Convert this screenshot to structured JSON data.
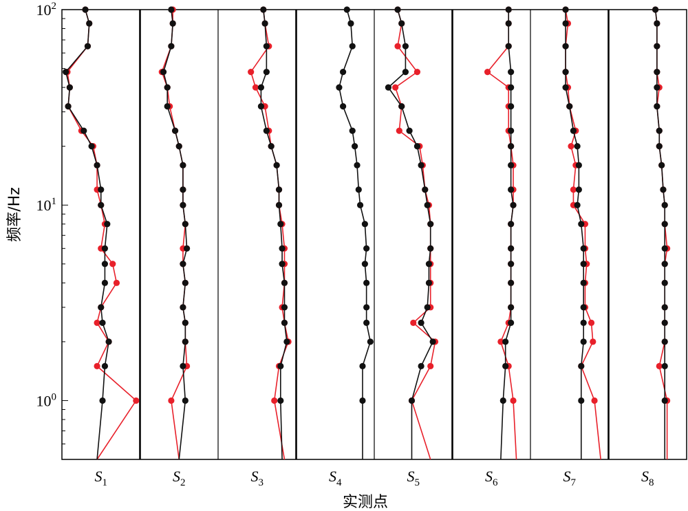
{
  "chart_data": {
    "type": "line",
    "xlabel": "实测点",
    "ylabel": "频率/Hz",
    "yscale": "log",
    "ylim": [
      0.5,
      100
    ],
    "yticks": [
      {
        "value": 1,
        "base": "10",
        "exp": "0"
      },
      {
        "value": 10,
        "base": "10",
        "exp": "1"
      },
      {
        "value": 100,
        "base": "10",
        "exp": "2"
      }
    ],
    "colors": {
      "black_series": "#111111",
      "red_series": "#e8202a"
    },
    "freqs": [
      100,
      85,
      65,
      48,
      40,
      32,
      24,
      20,
      16,
      12,
      10,
      8,
      6,
      5,
      4,
      3,
      2.5,
      2,
      1.5,
      1,
      0.5
    ],
    "panels": [
      {
        "label": "S",
        "sub": "1",
        "black": [
          0.3,
          0.35,
          0.33,
          0.05,
          0.1,
          0.08,
          0.28,
          0.38,
          0.45,
          0.5,
          0.5,
          0.58,
          0.55,
          0.55,
          0.55,
          0.5,
          0.52,
          0.6,
          0.55,
          0.52,
          0.45
        ],
        "red": [
          0.3,
          0.35,
          0.33,
          0.07,
          0.1,
          0.08,
          0.25,
          0.4,
          0.45,
          0.45,
          0.5,
          0.55,
          0.5,
          0.65,
          0.7,
          0.5,
          0.45,
          0.6,
          0.45,
          0.95,
          0.45
        ]
      },
      {
        "label": "S",
        "sub": "2",
        "black": [
          0.4,
          0.42,
          0.4,
          0.3,
          0.35,
          0.35,
          0.45,
          0.5,
          0.55,
          0.55,
          0.55,
          0.58,
          0.6,
          0.55,
          0.58,
          0.55,
          0.58,
          0.58,
          0.55,
          0.58,
          0.5
        ],
        "red": [
          0.42,
          0.42,
          0.4,
          0.28,
          0.35,
          0.38,
          0.45,
          0.5,
          0.55,
          0.55,
          0.55,
          0.58,
          0.55,
          0.55,
          0.58,
          0.55,
          0.58,
          0.58,
          0.6,
          0.4,
          0.5
        ]
      },
      {
        "label": "S",
        "sub": "3",
        "black": [
          0.58,
          0.6,
          0.62,
          0.62,
          0.55,
          0.55,
          0.62,
          0.68,
          0.75,
          0.78,
          0.78,
          0.8,
          0.82,
          0.82,
          0.85,
          0.85,
          0.85,
          0.88,
          0.8,
          0.8,
          0.82
        ],
        "red": [
          0.58,
          0.6,
          0.65,
          0.42,
          0.48,
          0.6,
          0.65,
          0.68,
          0.75,
          0.78,
          0.78,
          0.82,
          0.85,
          0.85,
          0.85,
          0.82,
          0.85,
          0.9,
          0.78,
          0.72,
          0.85
        ]
      },
      {
        "label": "S",
        "sub": "4",
        "black": [
          0.65,
          0.7,
          0.72,
          0.6,
          0.55,
          0.6,
          0.72,
          0.75,
          0.78,
          0.8,
          0.82,
          0.88,
          0.9,
          0.88,
          0.9,
          0.9,
          0.9,
          0.95,
          0.85,
          0.85,
          0.85
        ]
      },
      {
        "label": "S",
        "sub": "5",
        "black": [
          0.3,
          0.35,
          0.4,
          0.4,
          0.18,
          0.35,
          0.45,
          0.55,
          0.6,
          0.65,
          0.68,
          0.72,
          0.72,
          0.7,
          0.7,
          0.68,
          0.6,
          0.75,
          0.6,
          0.48,
          0.48
        ],
        "red": [
          0.3,
          0.35,
          0.3,
          0.55,
          0.27,
          0.35,
          0.32,
          0.58,
          0.62,
          0.65,
          0.7,
          0.72,
          0.72,
          0.72,
          0.72,
          0.72,
          0.5,
          0.78,
          0.72,
          0.48,
          0.72
        ]
      },
      {
        "label": "S",
        "sub": "6",
        "black": [
          0.72,
          0.72,
          0.72,
          0.75,
          0.75,
          0.75,
          0.75,
          0.75,
          0.75,
          0.75,
          0.78,
          0.75,
          0.75,
          0.75,
          0.75,
          0.75,
          0.75,
          0.68,
          0.68,
          0.65,
          0.62
        ],
        "red": [
          0.72,
          0.72,
          0.72,
          0.45,
          0.72,
          0.72,
          0.72,
          0.75,
          0.78,
          0.78,
          0.78,
          0.75,
          0.75,
          0.75,
          0.75,
          0.75,
          0.72,
          0.62,
          0.72,
          0.78,
          0.82
        ]
      },
      {
        "label": "S",
        "sub": "7",
        "black": [
          0.45,
          0.45,
          0.45,
          0.45,
          0.45,
          0.5,
          0.55,
          0.6,
          0.62,
          0.62,
          0.6,
          0.65,
          0.68,
          0.68,
          0.68,
          0.68,
          0.68,
          0.68,
          0.65,
          0.65,
          0.65
        ],
        "red": [
          0.45,
          0.48,
          0.45,
          0.45,
          0.48,
          0.5,
          0.58,
          0.52,
          0.58,
          0.55,
          0.55,
          0.7,
          0.7,
          0.72,
          0.7,
          0.7,
          0.78,
          0.8,
          0.65,
          0.82,
          0.9
        ]
      },
      {
        "label": "S",
        "sub": "8",
        "black": [
          0.6,
          0.62,
          0.62,
          0.62,
          0.62,
          0.62,
          0.65,
          0.65,
          0.68,
          0.7,
          0.72,
          0.72,
          0.72,
          0.72,
          0.72,
          0.72,
          0.72,
          0.72,
          0.72,
          0.72,
          0.72
        ],
        "red": [
          0.6,
          0.62,
          0.62,
          0.62,
          0.65,
          0.62,
          0.65,
          0.65,
          0.68,
          0.7,
          0.72,
          0.72,
          0.75,
          0.72,
          0.72,
          0.72,
          0.72,
          0.72,
          0.65,
          0.75,
          0.75
        ]
      }
    ]
  }
}
